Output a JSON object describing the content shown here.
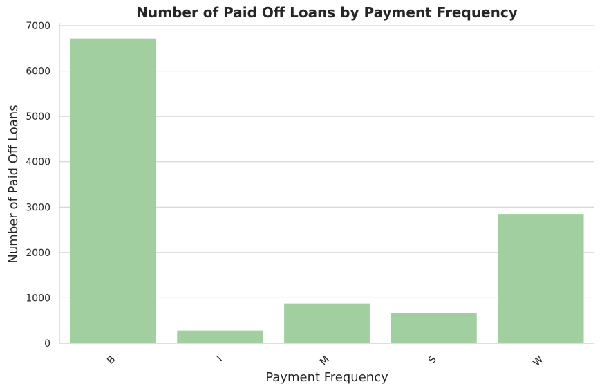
{
  "chart_data": {
    "type": "bar",
    "title": "Number of Paid Off Loans by Payment Frequency",
    "xlabel": "Payment Frequency",
    "ylabel": "Number of Paid Off Loans",
    "categories": [
      "B",
      "I",
      "M",
      "S",
      "W"
    ],
    "values": [
      6715,
      280,
      875,
      660,
      2850
    ],
    "ylim": [
      0,
      7000
    ],
    "yticks": [
      0,
      1000,
      2000,
      3000,
      4000,
      5000,
      6000,
      7000
    ],
    "grid": "horizontal",
    "bar_color": "#a1cf9f",
    "grid_color": "#cccccc",
    "spine_color": "#cccccc"
  }
}
